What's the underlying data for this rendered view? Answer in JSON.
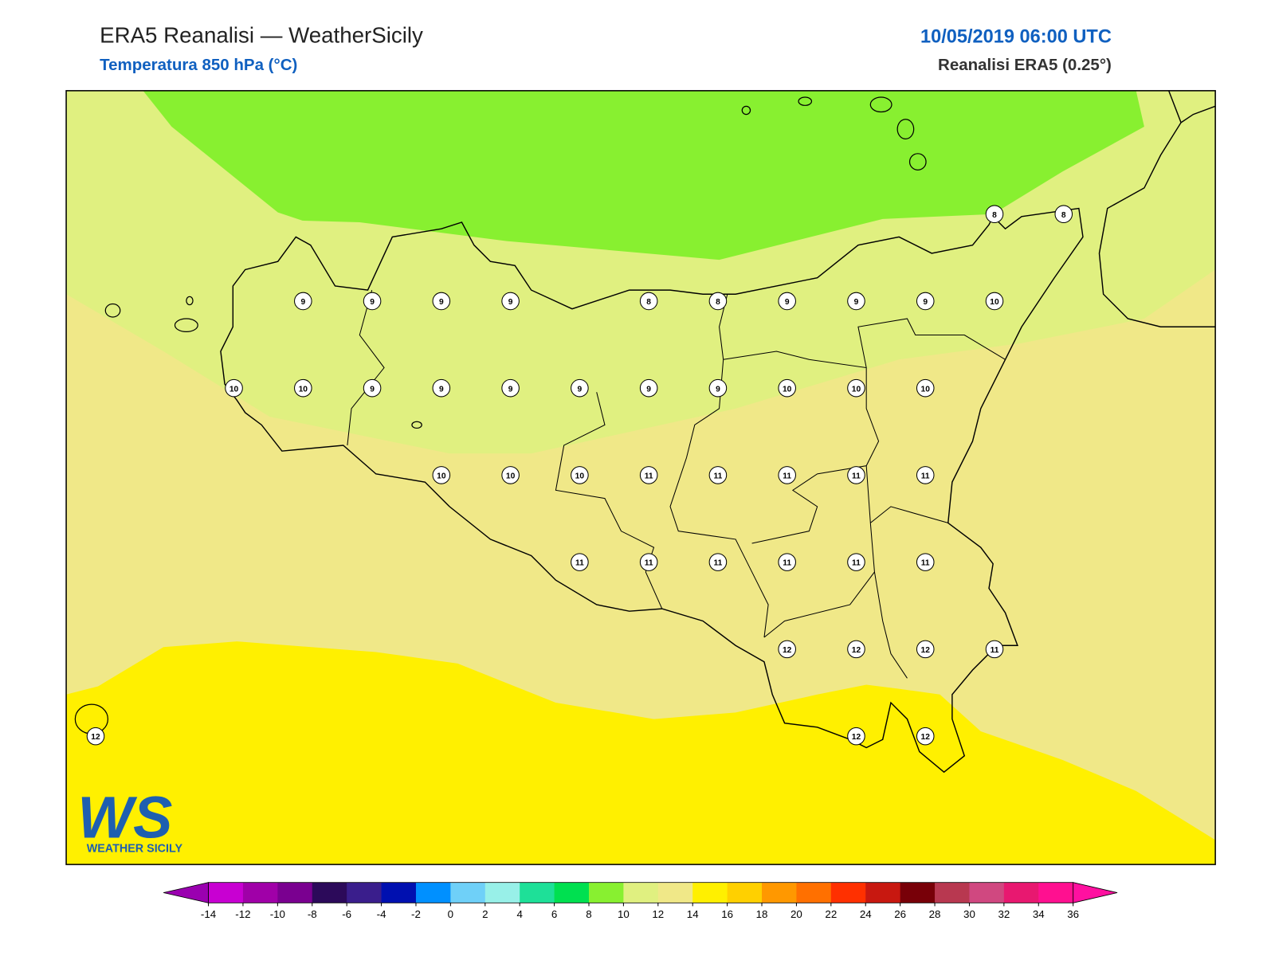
{
  "header": {
    "title": "ERA5 Reanalisi — WeatherSicily",
    "subtitle": "Temperatura 850 hPa (°C)",
    "date": "10/05/2019 06:00 UTC",
    "source": "Reanalisi ERA5 (0.25°)"
  },
  "map": {
    "type": "station_grid",
    "grid": [
      [
        null,
        null,
        null,
        null,
        null,
        null,
        null,
        null,
        null,
        null,
        null,
        null,
        null,
        8,
        8
      ],
      [
        null,
        null,
        null,
        9,
        9,
        9,
        9,
        null,
        8,
        8,
        9,
        9,
        9,
        10,
        null
      ],
      [
        null,
        null,
        10,
        10,
        9,
        9,
        9,
        9,
        9,
        9,
        10,
        10,
        10,
        null,
        null
      ],
      [
        null,
        null,
        null,
        null,
        null,
        10,
        10,
        10,
        11,
        11,
        11,
        11,
        11,
        null,
        null
      ],
      [
        null,
        null,
        null,
        null,
        null,
        null,
        null,
        11,
        11,
        11,
        11,
        11,
        11,
        null,
        null
      ],
      [
        null,
        null,
        null,
        null,
        null,
        null,
        null,
        null,
        null,
        null,
        12,
        12,
        12,
        11,
        null
      ],
      [
        12,
        null,
        null,
        null,
        null,
        null,
        null,
        null,
        null,
        null,
        null,
        12,
        12,
        null,
        null
      ]
    ]
  },
  "colorbar": {
    "ticks": [
      -14,
      -12,
      -10,
      -8,
      -6,
      -4,
      -2,
      0,
      2,
      4,
      6,
      8,
      10,
      12,
      14,
      16,
      18,
      20,
      22,
      24,
      26,
      28,
      30,
      32,
      34,
      36
    ],
    "under": "#9a00b0",
    "over": "#ff10a0",
    "colors": [
      "#c800d2",
      "#a000a8",
      "#7a0090",
      "#2c0a5a",
      "#3a1e8c",
      "#0010b0",
      "#0090ff",
      "#6fd0f8",
      "#98f0e8",
      "#1ee098",
      "#00e050",
      "#88f030",
      "#e0f080",
      "#f0e888",
      "#fff000",
      "#ffd000",
      "#ff9800",
      "#ff7000",
      "#ff3000",
      "#c81810",
      "#780008",
      "#b83850",
      "#d04880",
      "#e81870",
      "#ff1090"
    ]
  },
  "logo": {
    "mark": "WS",
    "name": "WEATHER SICILY"
  }
}
